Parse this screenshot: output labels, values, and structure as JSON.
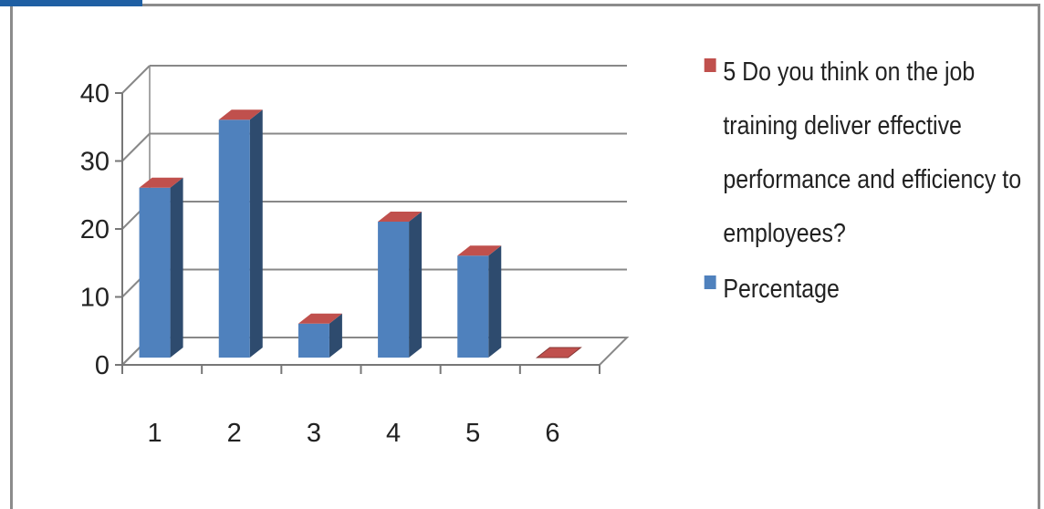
{
  "chart_data": {
    "type": "bar",
    "categories": [
      "1",
      "2",
      "3",
      "4",
      "5",
      "6"
    ],
    "series": [
      {
        "name": "5 Do you think on the job training deliver effective performance and efficiency to employees?",
        "values": [
          0,
          0,
          0,
          0,
          0,
          0
        ],
        "color": "#c0504d"
      },
      {
        "name": "Percentage",
        "values": [
          25,
          35,
          5,
          20,
          15,
          0
        ],
        "color": "#4f81bd"
      }
    ],
    "ylim": [
      0,
      40
    ],
    "yticks": [
      "0",
      "10",
      "20",
      "30",
      "40"
    ],
    "grid": true,
    "legend_position": "right",
    "style": "3d-column"
  }
}
